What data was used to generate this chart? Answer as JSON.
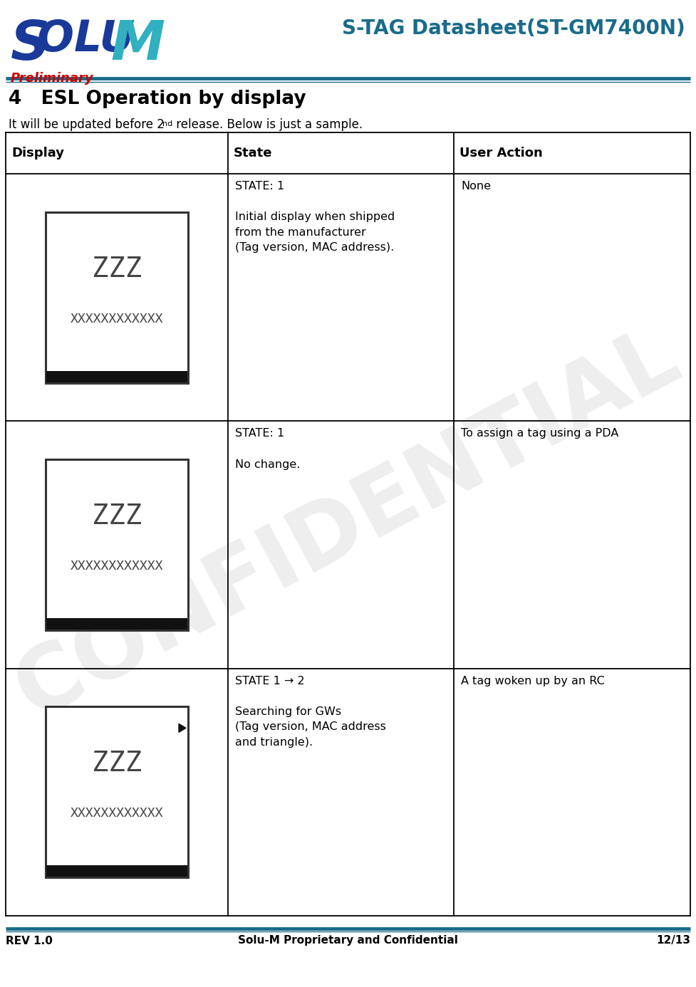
{
  "title": "S-TAG Datasheet(ST-GM7400N)",
  "preliminary": "Preliminary",
  "section_title": "4   ESL Operation by display",
  "intro_text": "It will be updated before 2",
  "intro_superscript": "nd",
  "intro_text2": " release. Below is just a sample.",
  "col_headers": [
    "Display",
    "State",
    "User Action"
  ],
  "rows": [
    {
      "state": "STATE: 1\n\nInitial display when shipped\nfrom the manufacturer\n(Tag version, MAC address).",
      "action": "None"
    },
    {
      "state": "STATE: 1\n\nNo change.",
      "action": "To assign a tag using a PDA"
    },
    {
      "state": "STATE 1 → 2\n\nSearching for GWs\n(Tag version, MAC address\nand triangle).",
      "action": "A tag woken up by an RC"
    }
  ],
  "bg_color": "#ffffff",
  "line_color": "#000000",
  "title_color": "#1a6b8a",
  "preliminary_color": "#cc0000",
  "footer_line_color": "#1a6b8a",
  "confidential_text": "CONFIDENTIAL",
  "confidential_color": "#c8c8c8",
  "footer_left": "REV 1.0",
  "footer_center": "Solu-M Proprietary and Confidential",
  "footer_right": "12/13",
  "logo_solu_color": "#1a3a9a",
  "logo_m_color": "#30b0c0",
  "header_sep_color": "#1a6b8a"
}
